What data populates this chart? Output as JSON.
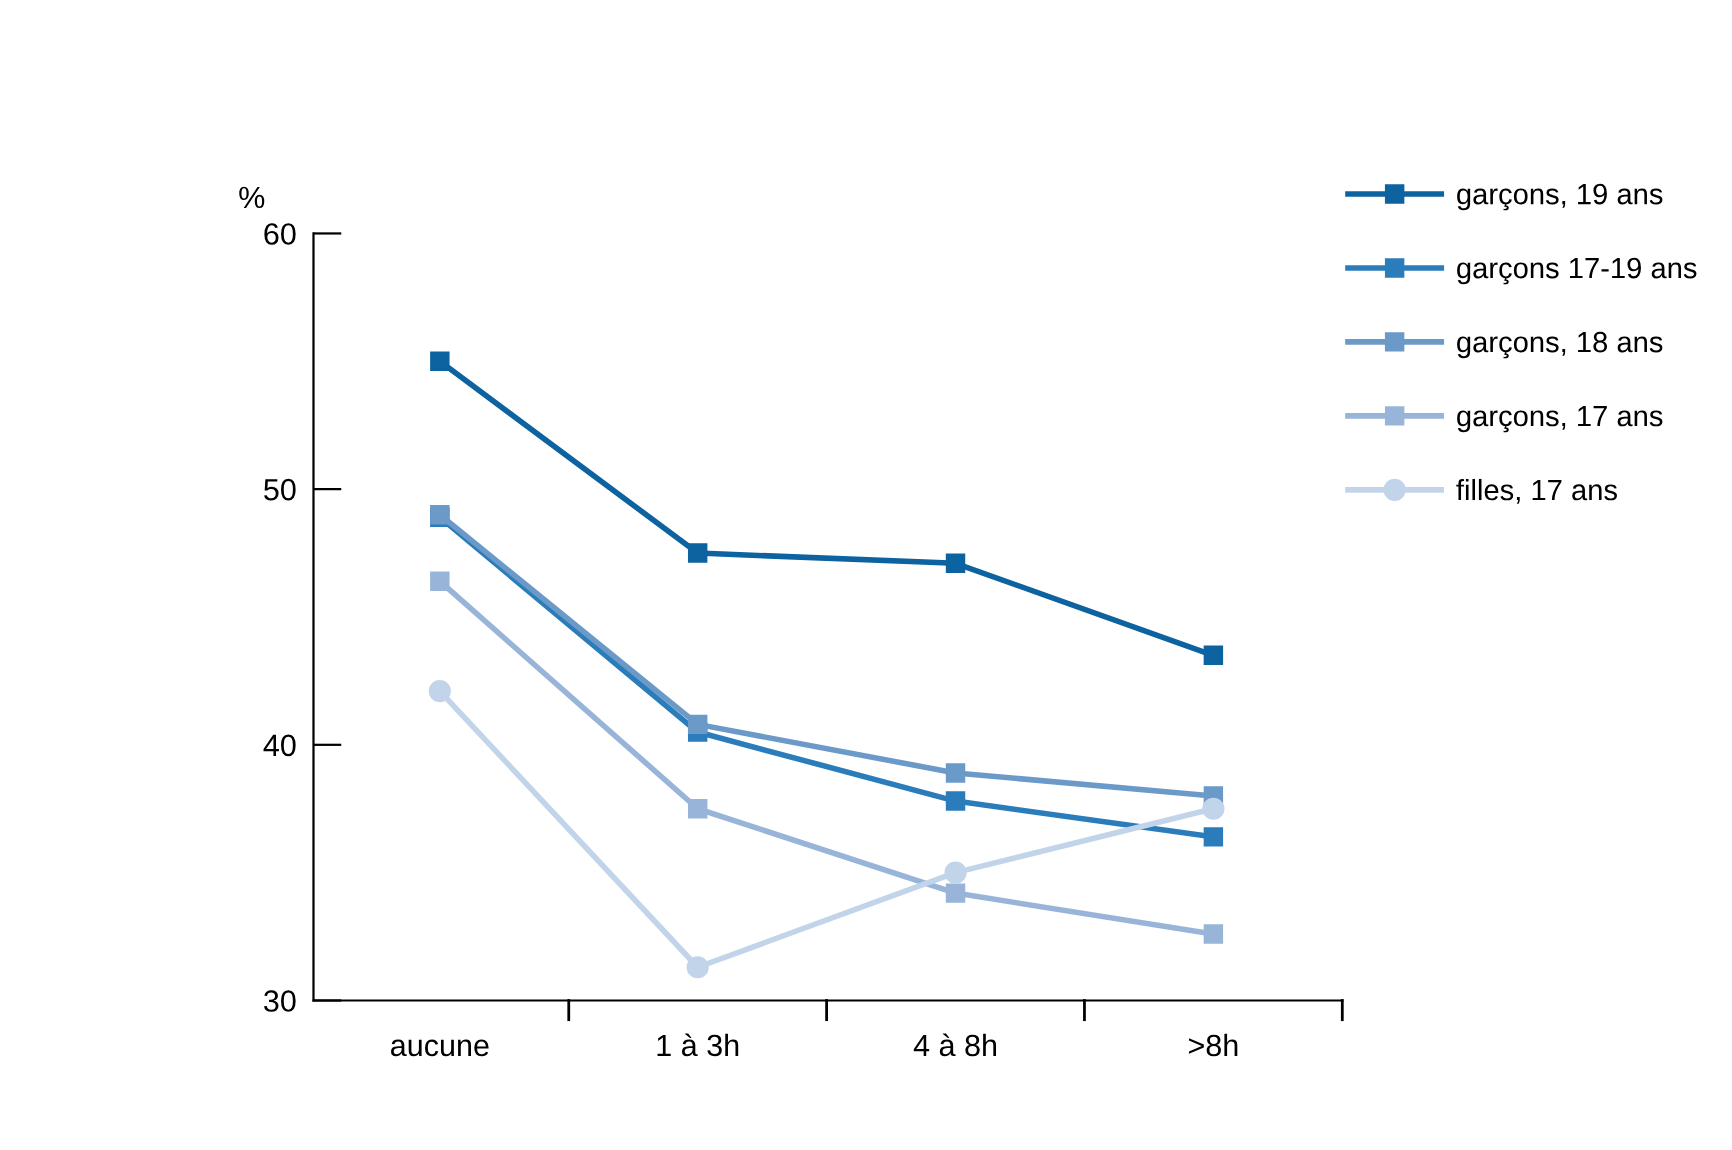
{
  "chart_data": {
    "type": "line",
    "ylabel": "%",
    "categories": [
      "aucune",
      "1 à 3h",
      "4 à 8h",
      ">8h"
    ],
    "series": [
      {
        "name": "garçons, 19 ans",
        "color": "#0d62a0",
        "marker": "square",
        "values": [
          55.0,
          47.5,
          47.1,
          43.5
        ]
      },
      {
        "name": "garçons 17-19 ans",
        "color": "#2b7cba",
        "marker": "square",
        "values": [
          48.9,
          40.5,
          37.8,
          36.4
        ]
      },
      {
        "name": "garçons, 18 ans",
        "color": "#6b9ac9",
        "marker": "square",
        "values": [
          49.0,
          40.8,
          38.9,
          38.0
        ]
      },
      {
        "name": "garçons, 17 ans",
        "color": "#98b5d9",
        "marker": "square",
        "values": [
          46.4,
          37.5,
          34.2,
          32.6
        ]
      },
      {
        "name": "filles, 17 ans",
        "color": "#c2d4e9",
        "marker": "circle",
        "values": [
          42.1,
          31.3,
          35.0,
          37.5
        ]
      }
    ],
    "ylim": [
      30,
      60
    ],
    "yticks": [
      30,
      40,
      50,
      60
    ],
    "grid": false,
    "legend": "top right",
    "line_style": "solid"
  }
}
